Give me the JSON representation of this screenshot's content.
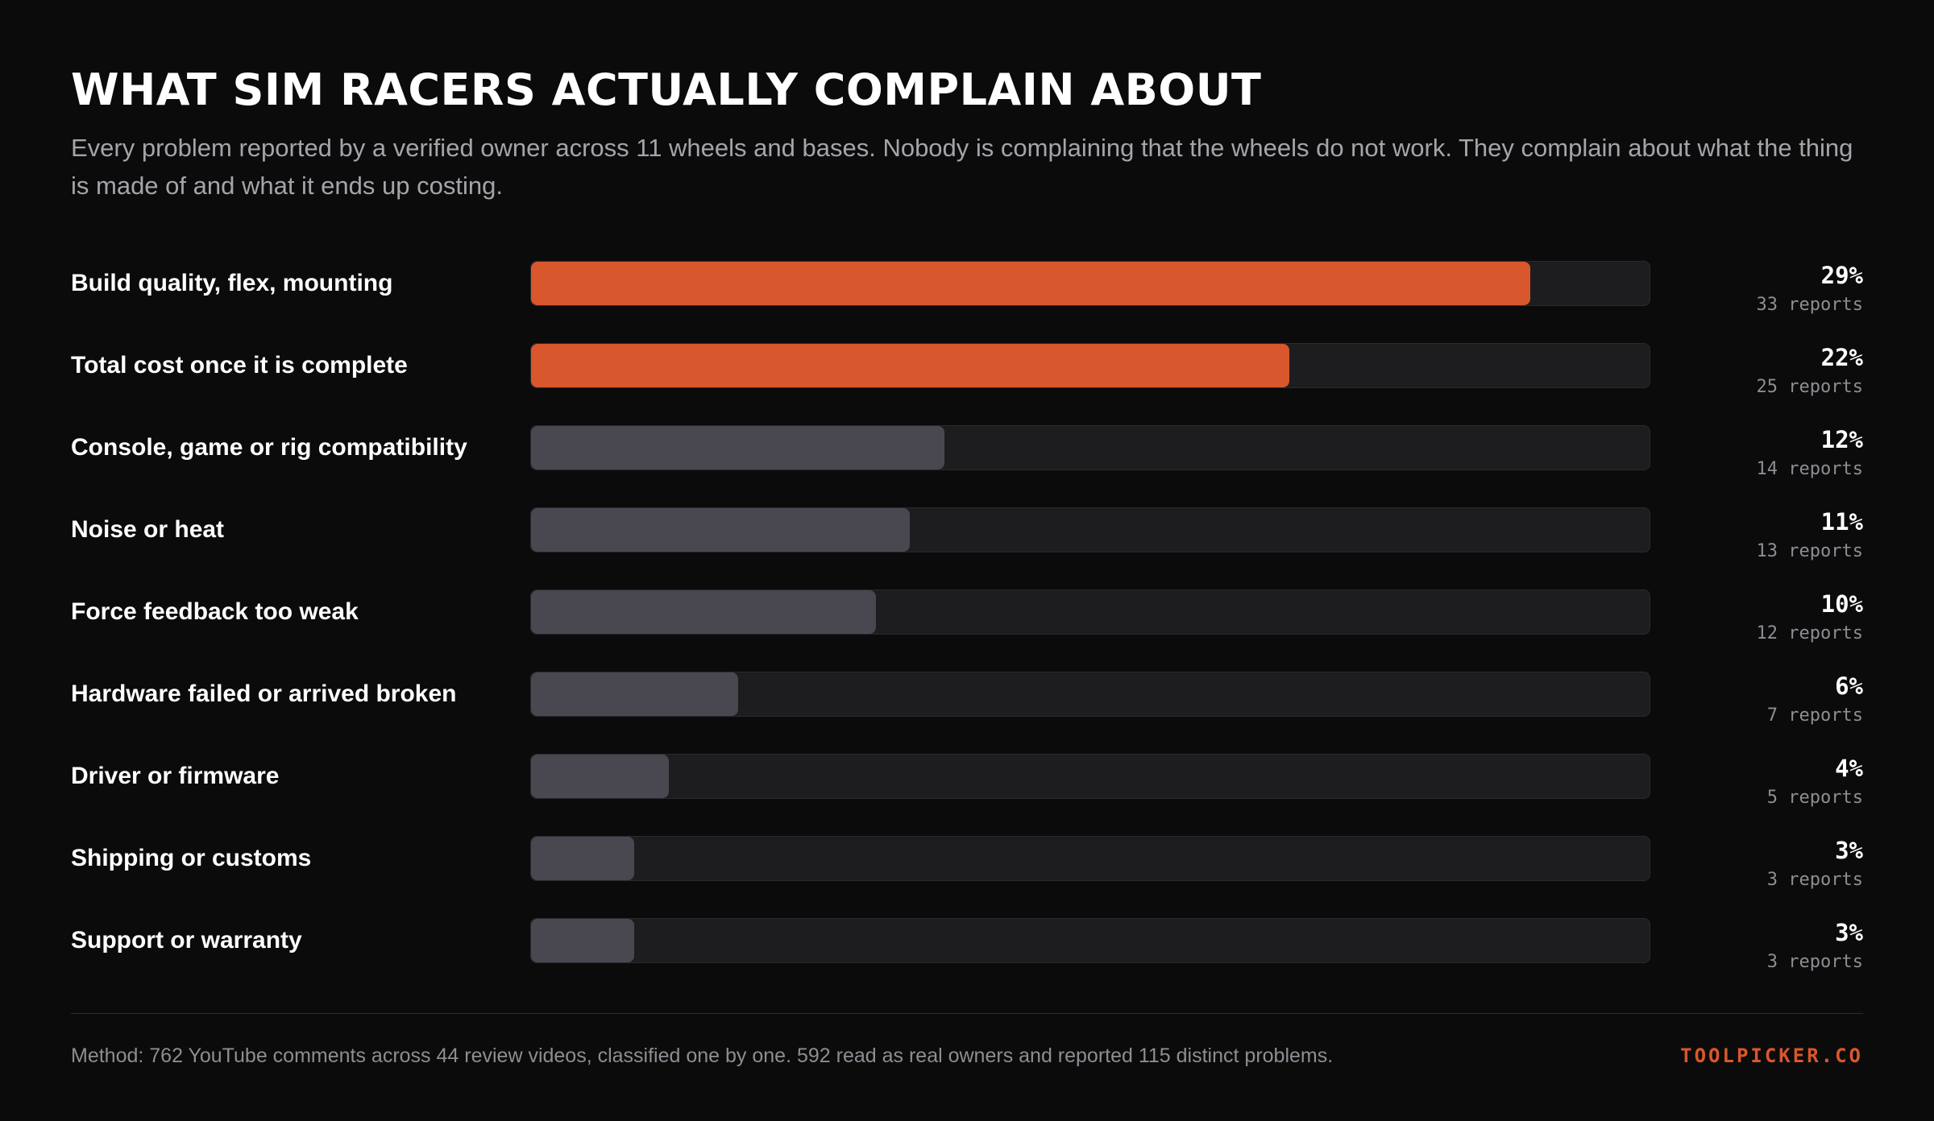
{
  "chart_data": {
    "type": "bar",
    "orientation": "horizontal",
    "title": "WHAT SIM RACERS ACTUALLY COMPLAIN ABOUT",
    "subtitle": "Every problem reported by a verified owner across 11 wheels and bases. Nobody is complaining that the wheels do not work. They complain about what the thing is made of and what it ends up costing.",
    "xlim": [
      0,
      32.5
    ],
    "grid": false,
    "legend": "none",
    "categories": [
      "Build quality, flex, mounting",
      "Total cost once it is complete",
      "Console, game or rig compatibility",
      "Noise or heat",
      "Force feedback too weak",
      "Hardware failed or arrived broken",
      "Driver or firmware",
      "Shipping or customs",
      "Support or warranty"
    ],
    "values": [
      29,
      22,
      12,
      11,
      10,
      6,
      4,
      3,
      3
    ],
    "value_labels": [
      "29%",
      "22%",
      "12%",
      "11%",
      "10%",
      "6%",
      "4%",
      "3%",
      "3%"
    ],
    "reports": [
      "33 reports",
      "25 reports",
      "14 reports",
      "13 reports",
      "12 reports",
      "7 reports",
      "5 reports",
      "3 reports",
      "3 reports"
    ],
    "highlight_count": 2,
    "colors": {
      "highlight": "#d9572c",
      "muted": "#494850",
      "track": "#1d1d20"
    }
  },
  "footer": {
    "method": "Method: 762 YouTube comments across 44 review videos, classified one by one. 592 read as real owners and reported 115 distinct problems.",
    "brand": "TOOLPICKER.CO"
  }
}
